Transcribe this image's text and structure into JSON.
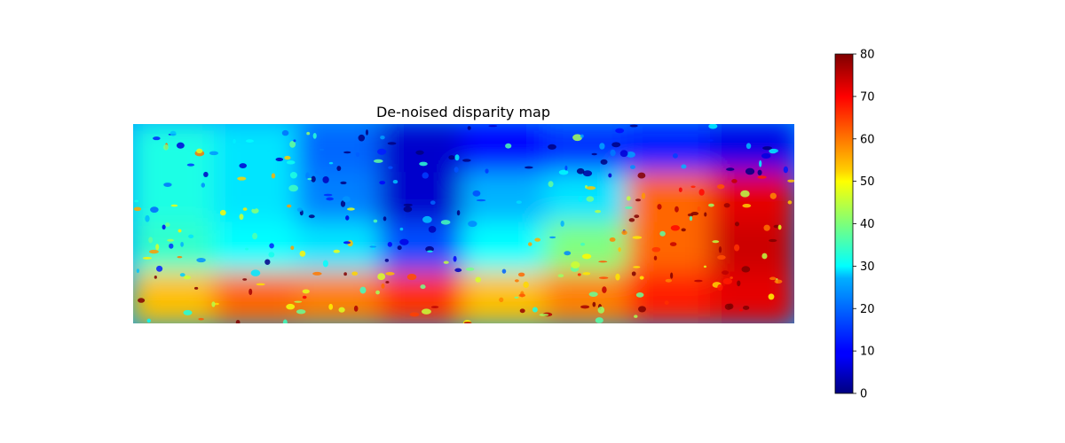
{
  "chart_data": {
    "type": "heatmap",
    "title": "De-noised disparity map",
    "xlabel": "",
    "ylabel": "",
    "axes_visible": false,
    "colormap": "jet",
    "value_range": [
      0,
      80
    ],
    "colorbar": {
      "position": "right",
      "ticks": [
        0,
        10,
        20,
        30,
        40,
        50,
        60,
        70,
        80
      ],
      "tick_labels": [
        "0",
        "10",
        "20",
        "30",
        "40",
        "50",
        "60",
        "70",
        "80"
      ]
    },
    "image_grid": {
      "columns": 8,
      "rows": 4,
      "approx_values": [
        [
          32,
          28,
          18,
          6,
          10,
          14,
          12,
          8
        ],
        [
          32,
          28,
          20,
          6,
          24,
          28,
          62,
          72
        ],
        [
          34,
          30,
          28,
          16,
          30,
          40,
          62,
          74
        ],
        [
          55,
          62,
          60,
          66,
          55,
          60,
          68,
          72
        ]
      ]
    }
  }
}
